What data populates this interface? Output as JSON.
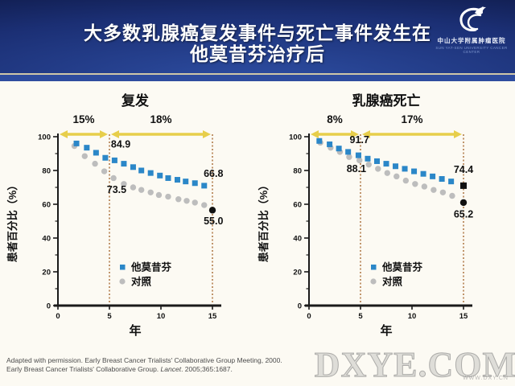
{
  "header": {
    "title_line1": "大多数乳腺癌复发事件与死亡事件发生在",
    "title_line2": "他莫昔芬治疗后",
    "logo": {
      "org_cn": "中山大学附属肿瘤医院",
      "org_en": "SUN YAT-SEN UNIVERSITY CANCER CENTER"
    }
  },
  "colors": {
    "tamoxifen_blue": "#2B87C8",
    "control_gray": "#BDBDBD",
    "end_marker_black": "#111111",
    "dotted_line": "#C0946B",
    "arrow_yellow": "#E7CE4B",
    "header_navy": "#1B2F74",
    "accent_strip": "#2E4C9E",
    "axis": "#1A1A1A"
  },
  "chart_data": [
    {
      "type": "scatter",
      "title": "复发",
      "xlabel": "年",
      "ylabel": "患者百分比（%）",
      "xlim": [
        0,
        15
      ],
      "ylim": [
        0,
        100
      ],
      "xticks": [
        0,
        5,
        10,
        15
      ],
      "yticks": [
        0,
        20,
        40,
        60,
        80,
        100
      ],
      "yticks_minor": [
        10,
        30,
        50,
        70,
        90
      ],
      "dotted_x": [
        5,
        15
      ],
      "intervals": [
        {
          "label": "15%",
          "from": 0,
          "to": 5
        },
        {
          "label": "18%",
          "from": 5,
          "to": 15
        }
      ],
      "value_labels": [
        {
          "text": "84.9",
          "x": 6.1,
          "y": 95.5
        },
        {
          "text": "73.5",
          "x": 5.7,
          "y": 68.5
        },
        {
          "text": "66.8",
          "x": 15.1,
          "y": 78
        },
        {
          "text": "55.0",
          "x": 15.1,
          "y": 50
        }
      ],
      "series": [
        {
          "name": "对照",
          "marker": "circle",
          "color": "#BDBDBD",
          "points": [
            [
              1.6,
              94.5
            ],
            [
              2.6,
              88.5
            ],
            [
              3.6,
              84
            ],
            [
              4.5,
              79.5
            ],
            [
              5.4,
              75.5
            ],
            [
              6.4,
              72
            ],
            [
              7.3,
              70
            ],
            [
              8.1,
              68.5
            ],
            [
              9.0,
              67
            ],
            [
              9.8,
              65.5
            ],
            [
              10.7,
              64.5
            ],
            [
              11.7,
              63
            ],
            [
              12.5,
              62
            ],
            [
              13.3,
              61
            ],
            [
              14.2,
              59.5
            ]
          ],
          "end_point": {
            "x": 15,
            "y": 56.5,
            "marker": "circle"
          }
        },
        {
          "name": "他莫昔芬",
          "marker": "square",
          "color": "#2B87C8",
          "points": [
            [
              1.8,
              96
            ],
            [
              2.8,
              93.5
            ],
            [
              3.7,
              90.5
            ],
            [
              4.6,
              87.5
            ],
            [
              5.5,
              86
            ],
            [
              6.4,
              84
            ],
            [
              7.3,
              82
            ],
            [
              8.1,
              80
            ],
            [
              9.0,
              78.5
            ],
            [
              9.9,
              77
            ],
            [
              10.7,
              75.5
            ],
            [
              11.6,
              74.5
            ],
            [
              12.4,
              73.5
            ],
            [
              13.3,
              72.5
            ],
            [
              14.2,
              71
            ]
          ],
          "end_point": null
        }
      ],
      "legend": [
        {
          "label": "他莫昔芬",
          "marker": "square",
          "color": "#2B87C8"
        },
        {
          "label": "对照",
          "marker": "circle",
          "color": "#BDBDBD"
        }
      ]
    },
    {
      "type": "scatter",
      "title": "乳腺癌死亡",
      "xlabel": "年",
      "ylabel": "患者百分比（%）",
      "xlim": [
        0,
        15
      ],
      "ylim": [
        0,
        100
      ],
      "xticks": [
        0,
        5,
        10,
        15
      ],
      "yticks": [
        0,
        20,
        40,
        60,
        80,
        100
      ],
      "yticks_minor": [
        10,
        30,
        50,
        70,
        90
      ],
      "dotted_x": [
        5,
        15
      ],
      "intervals": [
        {
          "label": "8%",
          "from": 0,
          "to": 5
        },
        {
          "label": "17%",
          "from": 5,
          "to": 15
        }
      ],
      "value_labels": [
        {
          "text": "91.7",
          "x": 4.9,
          "y": 98
        },
        {
          "text": "88.1",
          "x": 4.6,
          "y": 81
        },
        {
          "text": "74.4",
          "x": 15.0,
          "y": 80.5
        },
        {
          "text": "65.2",
          "x": 15.0,
          "y": 54
        }
      ],
      "series": [
        {
          "name": "对照",
          "marker": "circle",
          "color": "#BDBDBD",
          "points": [
            [
              1.1,
              96.5
            ],
            [
              2.1,
              93.5
            ],
            [
              3.0,
              91
            ],
            [
              3.9,
              88
            ],
            [
              4.9,
              86
            ],
            [
              5.8,
              83.5
            ],
            [
              6.7,
              81
            ],
            [
              7.6,
              78.5
            ],
            [
              8.5,
              76.5
            ],
            [
              9.4,
              74
            ],
            [
              10.3,
              72
            ],
            [
              11.2,
              70.5
            ],
            [
              12.1,
              68.5
            ],
            [
              13.0,
              67
            ],
            [
              13.9,
              65
            ]
          ],
          "end_point": {
            "x": 15,
            "y": 61,
            "marker": "circle"
          }
        },
        {
          "name": "他莫昔芬",
          "marker": "square",
          "color": "#2B87C8",
          "points": [
            [
              1.0,
              97.5
            ],
            [
              2.0,
              95.5
            ],
            [
              2.9,
              93
            ],
            [
              3.8,
              91
            ],
            [
              4.8,
              89
            ],
            [
              5.7,
              87
            ],
            [
              6.6,
              85.5
            ],
            [
              7.5,
              84
            ],
            [
              8.4,
              82.5
            ],
            [
              9.3,
              81
            ],
            [
              10.2,
              79.5
            ],
            [
              11.1,
              78
            ],
            [
              12.0,
              76.5
            ],
            [
              12.9,
              75
            ],
            [
              13.8,
              73.5
            ]
          ],
          "end_point": {
            "x": 15,
            "y": 71,
            "marker": "square"
          }
        }
      ],
      "legend": [
        {
          "label": "他莫昔芬",
          "marker": "square",
          "color": "#2B87C8"
        },
        {
          "label": "对照",
          "marker": "circle",
          "color": "#BDBDBD"
        }
      ]
    }
  ],
  "footer": {
    "citation_line1": "Adapted with permission. Early Breast Cancer Trialists' Collaborative Group Meeting, 2000.",
    "citation_line2_prefix": "Early Breast Cancer Trialists' Collaborative Group. ",
    "citation_line2_italic": "Lancet",
    "citation_line2_suffix": ". 2005;365:1687."
  },
  "watermark": {
    "text": "DXYE.COM",
    "subtext": "WWW.DXY.CN"
  }
}
